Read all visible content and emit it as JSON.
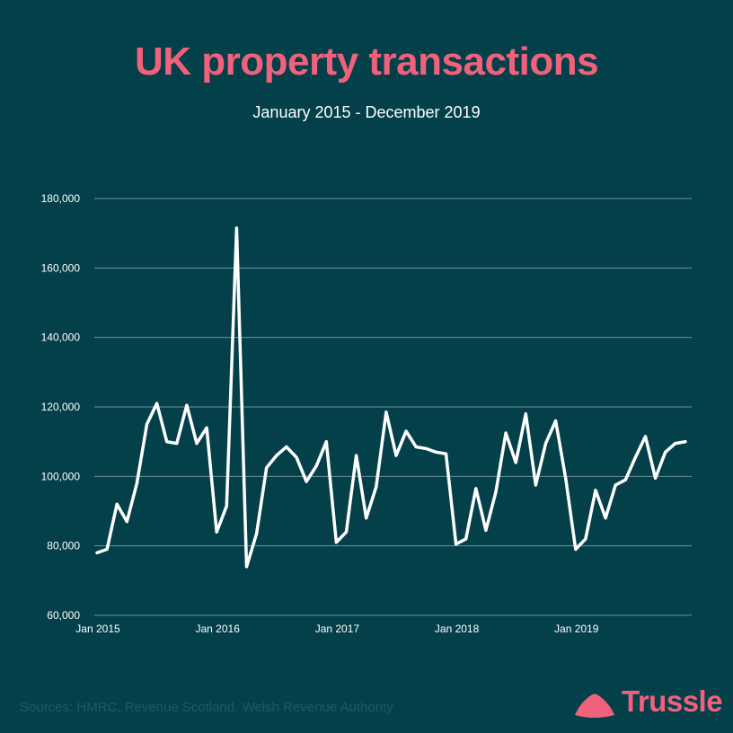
{
  "colors": {
    "background": "#04404a",
    "accent": "#f2617c",
    "line": "#ffffff",
    "grid": "#6d9298",
    "tick_text": "#ffffff",
    "source_text": "#1f5a62"
  },
  "header": {
    "title": "UK property transactions",
    "subtitle": "January 2015 - December 2019"
  },
  "footer": {
    "source": "Sources: HMRC, Revenue Scotland, Welsh Revenue Authority",
    "logo_text": "Trussle"
  },
  "chart_data": {
    "type": "line",
    "title": "UK property transactions",
    "subtitle": "January 2015 - December 2019",
    "xlabel": "",
    "ylabel": "",
    "ylim": [
      60000,
      180000
    ],
    "yticks": [
      60000,
      80000,
      100000,
      120000,
      140000,
      160000,
      180000
    ],
    "ytick_labels": [
      "60,000",
      "80,000",
      "100,000",
      "120,000",
      "140,000",
      "160,000",
      "180,000"
    ],
    "xtick_labels": [
      "Jan 2015",
      "Jan 2016",
      "Jan 2017",
      "Jan 2018",
      "Jan 2019"
    ],
    "xtick_months": [
      "2015-01",
      "2016-01",
      "2017-01",
      "2018-01",
      "2019-01"
    ],
    "grid": true,
    "legend": "none",
    "x": [
      "2015-01",
      "2015-02",
      "2015-03",
      "2015-04",
      "2015-05",
      "2015-06",
      "2015-07",
      "2015-08",
      "2015-09",
      "2015-10",
      "2015-11",
      "2015-12",
      "2016-01",
      "2016-02",
      "2016-03",
      "2016-04",
      "2016-05",
      "2016-06",
      "2016-07",
      "2016-08",
      "2016-09",
      "2016-10",
      "2016-11",
      "2016-12",
      "2017-01",
      "2017-02",
      "2017-03",
      "2017-04",
      "2017-05",
      "2017-06",
      "2017-07",
      "2017-08",
      "2017-09",
      "2017-10",
      "2017-11",
      "2017-12",
      "2018-01",
      "2018-02",
      "2018-03",
      "2018-04",
      "2018-05",
      "2018-06",
      "2018-07",
      "2018-08",
      "2018-09",
      "2018-10",
      "2018-11",
      "2018-12",
      "2019-01",
      "2019-02",
      "2019-03",
      "2019-04",
      "2019-05",
      "2019-06",
      "2019-07",
      "2019-08",
      "2019-09",
      "2019-10",
      "2019-11",
      "2019-12"
    ],
    "values": [
      78000,
      79000,
      92000,
      87000,
      98000,
      115000,
      121000,
      110000,
      109500,
      120500,
      109500,
      114000,
      84000,
      91500,
      171500,
      74000,
      83500,
      102500,
      106000,
      108500,
      105500,
      98500,
      103000,
      110000,
      81000,
      84000,
      106000,
      88000,
      97000,
      118500,
      106000,
      113000,
      108500,
      108000,
      107000,
      106500,
      80500,
      82000,
      96500,
      84500,
      95500,
      112500,
      104000,
      118000,
      97500,
      109500,
      116000,
      99500,
      79000,
      82000,
      96000,
      88000,
      97500,
      99000,
      105500,
      111500,
      99500,
      107000,
      109500,
      110000
    ]
  }
}
